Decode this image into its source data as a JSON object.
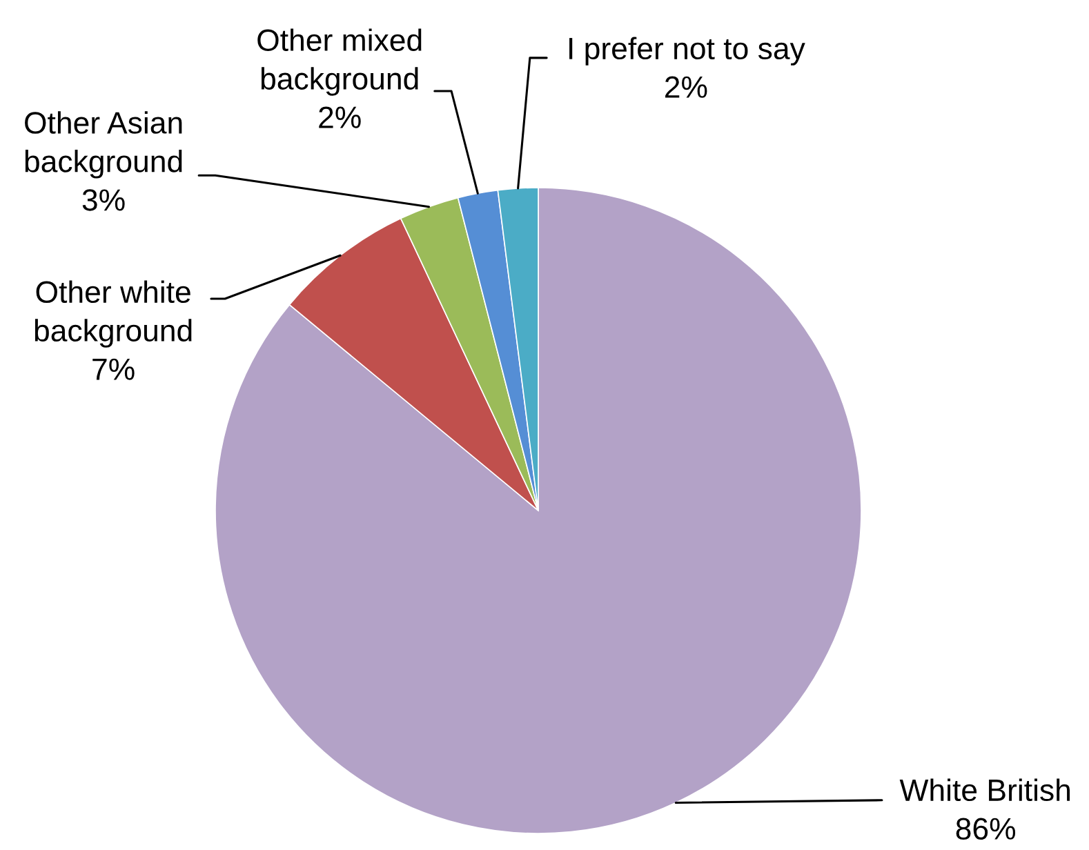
{
  "chart_data": {
    "type": "pie",
    "categories": [
      "White British",
      "Other white background",
      "Other Asian background",
      "Other mixed background",
      "I prefer not to say"
    ],
    "values": [
      86,
      7,
      3,
      2,
      2
    ],
    "colors": [
      "#b3a2c7",
      "#c0504d",
      "#9bbb59",
      "#558ed5",
      "#4bacc6"
    ],
    "value_labels": [
      "86%",
      "7%",
      "3%",
      "2%",
      "2%"
    ]
  }
}
